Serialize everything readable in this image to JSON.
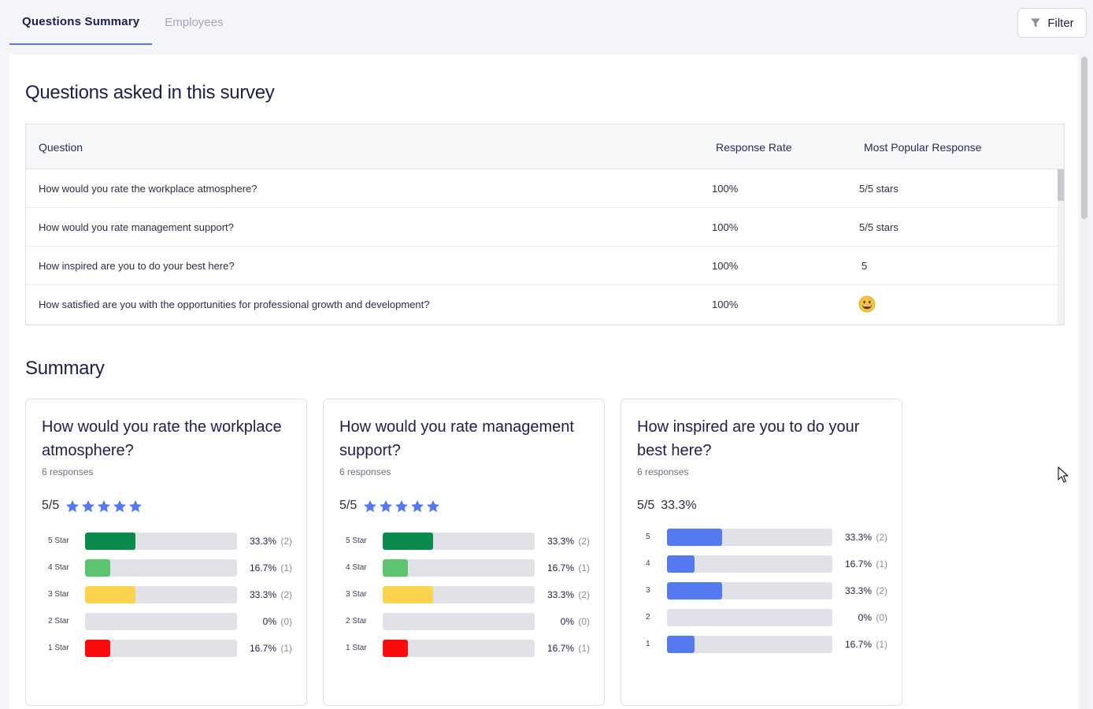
{
  "tabs": [
    {
      "label": "Questions Summary",
      "active": true
    },
    {
      "label": "Employees",
      "active": false
    }
  ],
  "filter": {
    "label": "Filter",
    "icon": "funnel-icon"
  },
  "questions_section": {
    "title": "Questions asked in this survey",
    "columns": [
      "Question",
      "Response Rate",
      "Most Popular Response"
    ],
    "rows": [
      {
        "question": "How would you rate the workplace atmosphere?",
        "rate": "100%",
        "popular": "5/5 stars"
      },
      {
        "question": "How would you rate management support?",
        "rate": "100%",
        "popular": "5/5 stars"
      },
      {
        "question": "How inspired are you to do your best here?",
        "rate": "100%",
        "popular": "5"
      },
      {
        "question": "How satisfied are you with the opportunities for professional growth and development?",
        "rate": "100%",
        "popular": "",
        "popular_icon": "grinning-face-emoji-icon"
      }
    ]
  },
  "summary": {
    "title": "Summary",
    "cards": [
      {
        "title": "How would you rate the workplace atmosphere?",
        "responses": "6 responses",
        "score": "5/5",
        "score_stars": 5,
        "bars": [
          {
            "label": "5 Star",
            "pct": "33.3%",
            "count": "(2)",
            "fraction": 0.333,
            "color": "#0a8a4c"
          },
          {
            "label": "4 Star",
            "pct": "16.7%",
            "count": "(1)",
            "fraction": 0.167,
            "color": "#5cc46e"
          },
          {
            "label": "3 Star",
            "pct": "33.3%",
            "count": "(2)",
            "fraction": 0.333,
            "color": "#fbd34f"
          },
          {
            "label": "2 Star",
            "pct": "0%",
            "count": "(0)",
            "fraction": 0,
            "color": "#e1e2e8"
          },
          {
            "label": "1 Star",
            "pct": "16.7%",
            "count": "(1)",
            "fraction": 0.167,
            "color": "#f80c0c"
          }
        ]
      },
      {
        "title": "How would you rate management support?",
        "responses": "6 responses",
        "score": "5/5",
        "score_stars": 5,
        "bars": [
          {
            "label": "5 Star",
            "pct": "33.3%",
            "count": "(2)",
            "fraction": 0.333,
            "color": "#0a8a4c"
          },
          {
            "label": "4 Star",
            "pct": "16.7%",
            "count": "(1)",
            "fraction": 0.167,
            "color": "#5cc46e"
          },
          {
            "label": "3 Star",
            "pct": "33.3%",
            "count": "(2)",
            "fraction": 0.333,
            "color": "#fbd34f"
          },
          {
            "label": "2 Star",
            "pct": "0%",
            "count": "(0)",
            "fraction": 0,
            "color": "#e1e2e8"
          },
          {
            "label": "1 Star",
            "pct": "16.7%",
            "count": "(1)",
            "fraction": 0.167,
            "color": "#f80c0c"
          }
        ]
      },
      {
        "title": "How inspired are you to do your best here?",
        "responses": "6 responses",
        "score": "5/5",
        "score_extra": "33.3%",
        "score_stars": 0,
        "bars": [
          {
            "label": "5",
            "pct": "33.3%",
            "count": "(2)",
            "fraction": 0.333,
            "color": "#5479f0"
          },
          {
            "label": "4",
            "pct": "16.7%",
            "count": "(1)",
            "fraction": 0.167,
            "color": "#5479f0"
          },
          {
            "label": "3",
            "pct": "33.3%",
            "count": "(2)",
            "fraction": 0.333,
            "color": "#5479f0"
          },
          {
            "label": "2",
            "pct": "0%",
            "count": "(0)",
            "fraction": 0,
            "color": "#5479f0"
          },
          {
            "label": "1",
            "pct": "16.7%",
            "count": "(1)",
            "fraction": 0.167,
            "color": "#5479f0"
          }
        ]
      }
    ]
  },
  "colors": {
    "accent": "#5478e8",
    "star": "#5479f0",
    "heading": "#1c1f4a"
  }
}
